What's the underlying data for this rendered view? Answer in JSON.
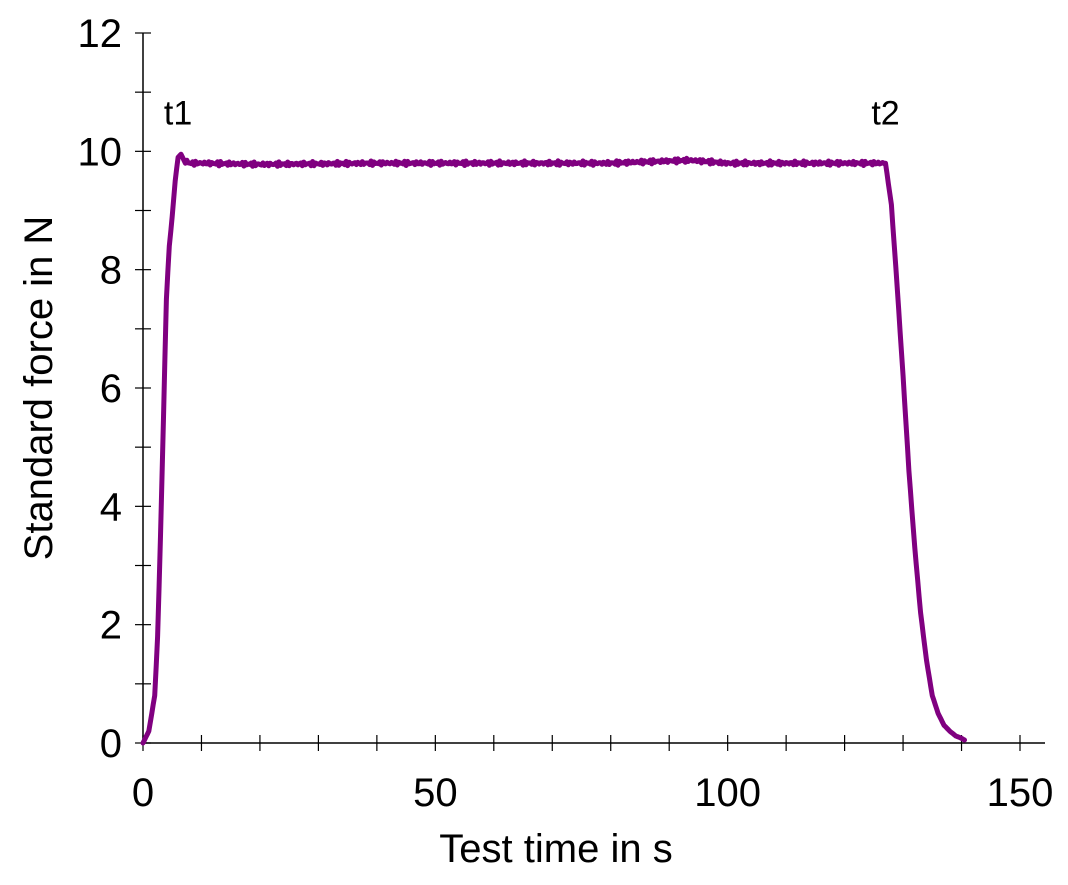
{
  "chart_data": {
    "type": "line",
    "xlabel": "Test time in s",
    "ylabel": "Standard force in N",
    "xlim": [
      0,
      150
    ],
    "ylim": [
      0,
      12
    ],
    "x_ticks": [
      0,
      50,
      100,
      150
    ],
    "y_ticks": [
      0,
      2,
      4,
      6,
      8,
      10,
      12
    ],
    "x_minor_step": 10,
    "y_minor_step": 1,
    "grid": false,
    "line_color": "#800080",
    "series": [
      {
        "x": [
          0,
          1,
          2,
          2.5,
          3,
          3.5,
          4,
          4.5,
          5,
          5.5,
          6,
          6.5,
          7,
          8,
          10,
          20,
          40,
          60,
          80,
          93.5,
          100,
          110,
          120,
          127,
          128,
          129,
          130,
          131,
          132,
          133,
          134,
          135,
          136,
          137,
          138,
          139,
          140,
          140.5
        ],
        "y": [
          0,
          0.2,
          0.8,
          1.8,
          3.5,
          5.5,
          7.5,
          8.4,
          8.9,
          9.5,
          9.9,
          9.95,
          9.85,
          9.8,
          9.8,
          9.78,
          9.8,
          9.8,
          9.8,
          9.85,
          9.8,
          9.8,
          9.8,
          9.8,
          9.1,
          7.7,
          6.2,
          4.6,
          3.3,
          2.2,
          1.4,
          0.8,
          0.5,
          0.3,
          0.2,
          0.12,
          0.08,
          0.05
        ]
      }
    ],
    "annotations": [
      {
        "text": "t1",
        "x": 6,
        "y": 10.45
      },
      {
        "text": "t2",
        "x": 127,
        "y": 10.45
      }
    ]
  }
}
